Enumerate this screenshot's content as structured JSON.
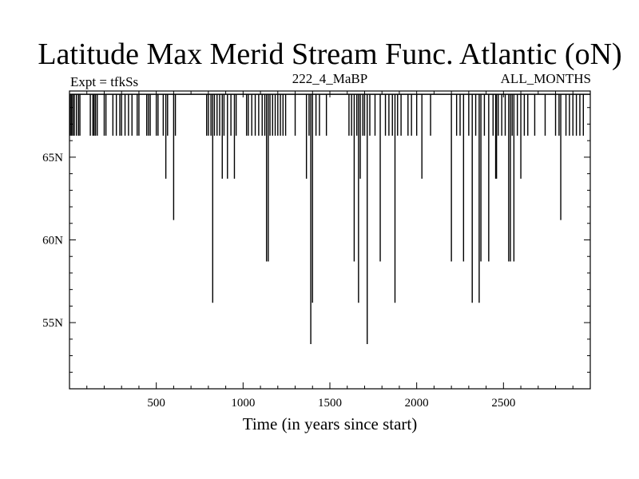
{
  "chart_data": {
    "type": "bar",
    "title": "Latitude Max Merid Stream Func. Atlantic (oN)",
    "subtitle_left": "Expt = tfkSs",
    "subtitle_center": "222_4_MaBP",
    "subtitle_right": "ALL_MONTHS",
    "xlabel": "Time (in years since start)",
    "ylabel": "",
    "xlim": [
      0,
      3000
    ],
    "ylim": [
      51,
      69
    ],
    "baseline": 68.8,
    "x_ticks": [
      500,
      1000,
      1500,
      2000,
      2500
    ],
    "x_tick_labels": [
      "500",
      "1000",
      "1500",
      "2000",
      "2500"
    ],
    "y_ticks": [
      55,
      60,
      65
    ],
    "y_tick_labels": [
      "55N",
      "60N",
      "65N"
    ],
    "grid": false,
    "series": [
      {
        "values": [
          [
            5,
            66.3
          ],
          [
            12,
            66.3
          ],
          [
            20,
            66.3
          ],
          [
            28,
            66.3
          ],
          [
            40,
            66.3
          ],
          [
            52,
            66.3
          ],
          [
            60,
            66.3
          ],
          [
            120,
            66.3
          ],
          [
            135,
            66.3
          ],
          [
            142,
            66.3
          ],
          [
            150,
            66.3
          ],
          [
            160,
            66.3
          ],
          [
            200,
            66.3
          ],
          [
            210,
            66.3
          ],
          [
            250,
            66.3
          ],
          [
            270,
            66.3
          ],
          [
            290,
            66.3
          ],
          [
            300,
            66.3
          ],
          [
            320,
            66.3
          ],
          [
            340,
            66.3
          ],
          [
            360,
            66.3
          ],
          [
            390,
            66.3
          ],
          [
            400,
            66.3
          ],
          [
            445,
            66.3
          ],
          [
            455,
            66.3
          ],
          [
            465,
            66.3
          ],
          [
            500,
            66.3
          ],
          [
            510,
            66.3
          ],
          [
            540,
            66.3
          ],
          [
            555,
            63.7
          ],
          [
            565,
            66.3
          ],
          [
            600,
            61.2
          ],
          [
            610,
            66.3
          ],
          [
            790,
            66.3
          ],
          [
            800,
            66.3
          ],
          [
            815,
            66.3
          ],
          [
            825,
            56.2
          ],
          [
            835,
            66.3
          ],
          [
            850,
            66.3
          ],
          [
            865,
            66.3
          ],
          [
            880,
            63.7
          ],
          [
            890,
            66.3
          ],
          [
            910,
            63.7
          ],
          [
            930,
            66.3
          ],
          [
            950,
            63.7
          ],
          [
            960,
            66.3
          ],
          [
            1020,
            66.3
          ],
          [
            1030,
            66.3
          ],
          [
            1050,
            66.3
          ],
          [
            1070,
            66.3
          ],
          [
            1090,
            66.3
          ],
          [
            1110,
            66.3
          ],
          [
            1125,
            66.3
          ],
          [
            1135,
            58.7
          ],
          [
            1145,
            58.7
          ],
          [
            1155,
            66.3
          ],
          [
            1170,
            66.3
          ],
          [
            1185,
            66.3
          ],
          [
            1200,
            66.3
          ],
          [
            1215,
            66.3
          ],
          [
            1230,
            66.3
          ],
          [
            1245,
            66.3
          ],
          [
            1300,
            66.3
          ],
          [
            1365,
            63.7
          ],
          [
            1380,
            66.3
          ],
          [
            1390,
            53.7
          ],
          [
            1400,
            56.2
          ],
          [
            1420,
            66.3
          ],
          [
            1440,
            66.3
          ],
          [
            1480,
            66.3
          ],
          [
            1610,
            66.3
          ],
          [
            1625,
            66.3
          ],
          [
            1640,
            58.7
          ],
          [
            1655,
            66.3
          ],
          [
            1665,
            56.2
          ],
          [
            1675,
            63.7
          ],
          [
            1690,
            66.3
          ],
          [
            1700,
            66.3
          ],
          [
            1715,
            53.7
          ],
          [
            1730,
            66.3
          ],
          [
            1760,
            66.3
          ],
          [
            1790,
            58.7
          ],
          [
            1820,
            66.3
          ],
          [
            1840,
            66.3
          ],
          [
            1860,
            66.3
          ],
          [
            1875,
            56.2
          ],
          [
            1890,
            66.3
          ],
          [
            1910,
            66.3
          ],
          [
            1950,
            66.3
          ],
          [
            1970,
            66.3
          ],
          [
            2000,
            66.3
          ],
          [
            2030,
            63.7
          ],
          [
            2080,
            66.3
          ],
          [
            2200,
            58.7
          ],
          [
            2230,
            66.3
          ],
          [
            2250,
            66.3
          ],
          [
            2270,
            58.7
          ],
          [
            2300,
            66.3
          ],
          [
            2320,
            56.2
          ],
          [
            2340,
            66.3
          ],
          [
            2360,
            56.2
          ],
          [
            2370,
            58.7
          ],
          [
            2390,
            66.3
          ],
          [
            2415,
            58.7
          ],
          [
            2440,
            66.3
          ],
          [
            2455,
            63.7
          ],
          [
            2460,
            63.7
          ],
          [
            2470,
            66.3
          ],
          [
            2490,
            66.3
          ],
          [
            2510,
            66.3
          ],
          [
            2530,
            58.7
          ],
          [
            2540,
            58.7
          ],
          [
            2550,
            66.3
          ],
          [
            2560,
            58.7
          ],
          [
            2580,
            66.3
          ],
          [
            2600,
            63.7
          ],
          [
            2620,
            66.3
          ],
          [
            2640,
            66.3
          ],
          [
            2680,
            66.3
          ],
          [
            2740,
            66.3
          ],
          [
            2800,
            66.3
          ],
          [
            2820,
            66.3
          ],
          [
            2830,
            61.2
          ],
          [
            2860,
            66.3
          ],
          [
            2880,
            66.3
          ],
          [
            2900,
            66.3
          ],
          [
            2920,
            66.3
          ],
          [
            2940,
            66.3
          ],
          [
            2960,
            66.3
          ]
        ]
      }
    ]
  },
  "colors": {
    "line": "#000000",
    "background": "#ffffff"
  }
}
